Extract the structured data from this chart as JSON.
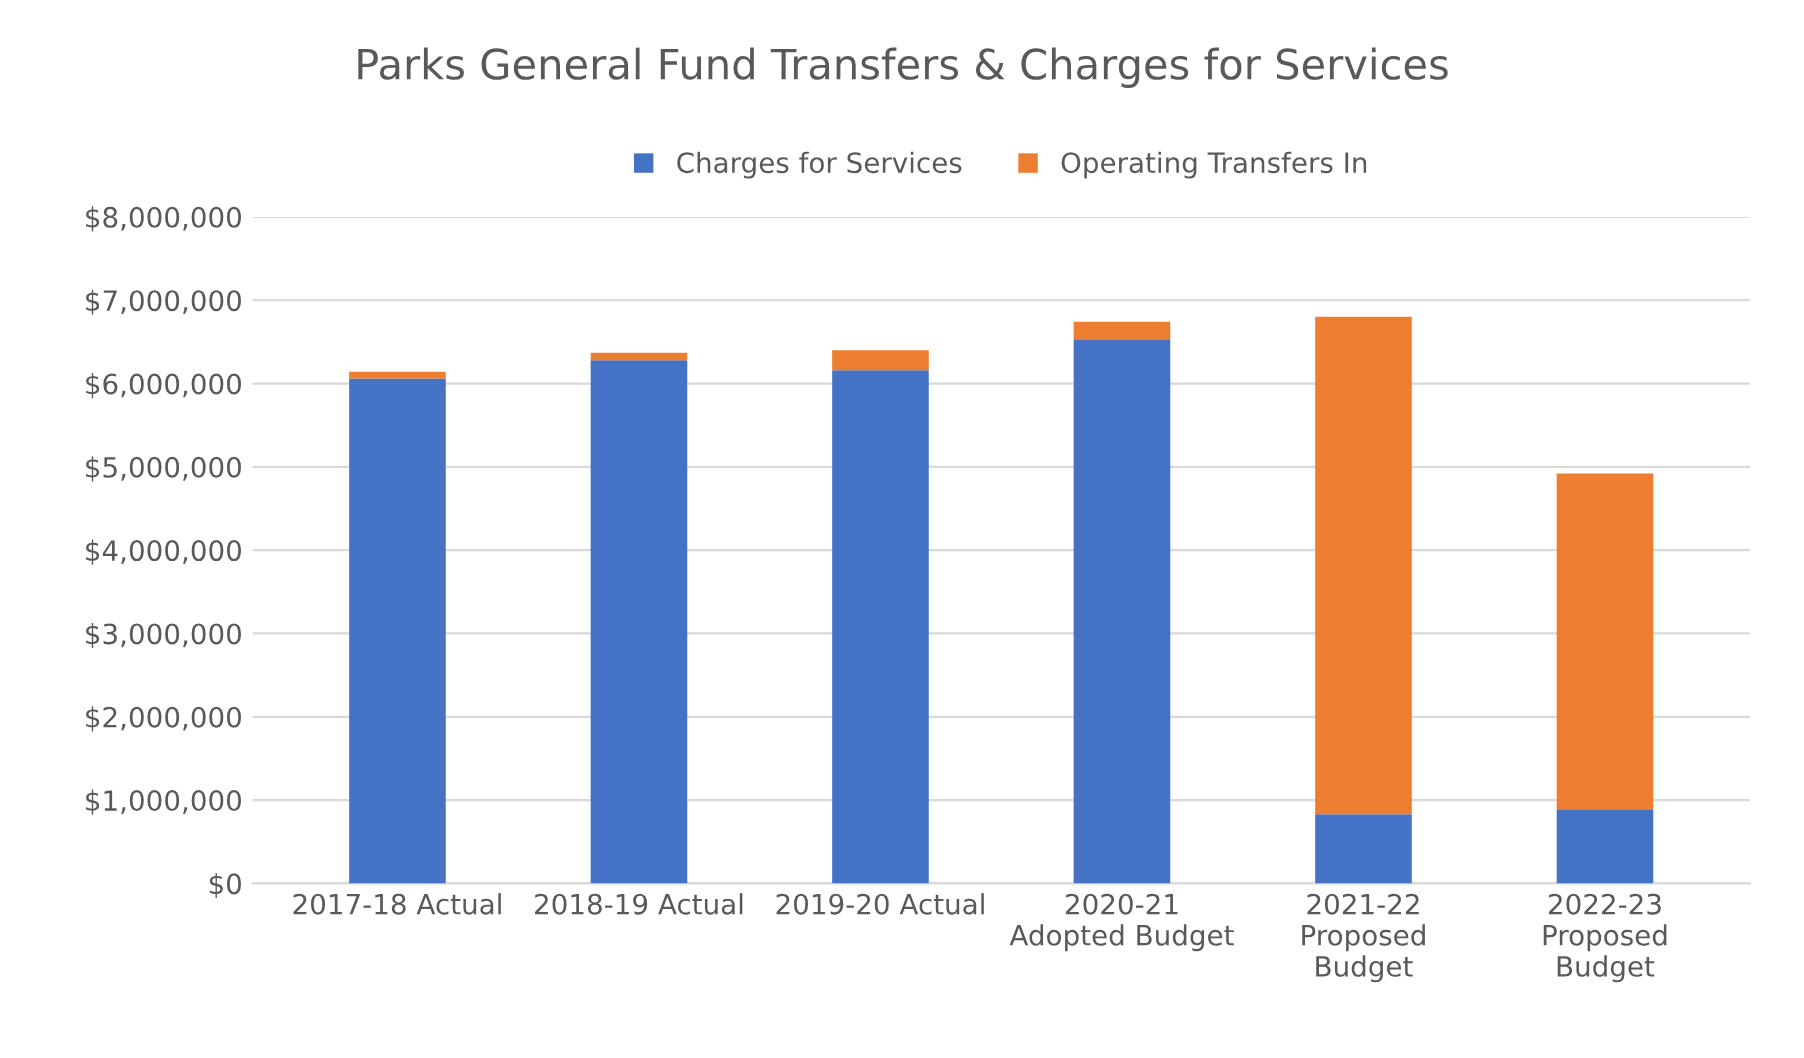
{
  "chart_data": {
    "type": "bar",
    "stacked": true,
    "title": "Parks General Fund Transfers & Charges for Services",
    "categories": [
      "2017-18 Actual",
      "2018-19 Actual",
      "2019-20 Actual",
      "2020-21\nAdopted Budget",
      "2021-22\nProposed\nBudget",
      "2022-23\nProposed\nBudget"
    ],
    "series": [
      {
        "name": "Charges for Services",
        "color": "#4472c4",
        "values": [
          6060000,
          6280000,
          6160000,
          6530000,
          830000,
          890000
        ]
      },
      {
        "name": "Operating Transfers In",
        "color": "#ed7d31",
        "values": [
          80000,
          90000,
          240000,
          210000,
          5970000,
          4030000
        ]
      }
    ],
    "ylim": [
      0,
      8000000
    ],
    "yticks": [
      {
        "value": 0,
        "label": "$0"
      },
      {
        "value": 1000000,
        "label": "$1,000,000"
      },
      {
        "value": 2000000,
        "label": "$2,000,000"
      },
      {
        "value": 3000000,
        "label": "$3,000,000"
      },
      {
        "value": 4000000,
        "label": "$4,000,000"
      },
      {
        "value": 5000000,
        "label": "$5,000,000"
      },
      {
        "value": 6000000,
        "label": "$6,000,000"
      },
      {
        "value": 7000000,
        "label": "$7,000,000"
      },
      {
        "value": 8000000,
        "label": "$8,000,000"
      }
    ],
    "grid": "y",
    "legend": "top"
  }
}
